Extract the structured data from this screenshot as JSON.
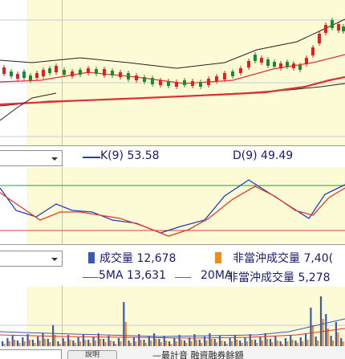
{
  "kd_panel": {
    "k_label": "K(9) 53.58",
    "d_label": "D(9) 49.49",
    "k_color": "#1f3fbf",
    "d_color": "#e23b2a"
  },
  "volume_panel": {
    "volume_label": "成交量 12,678",
    "nonday_label": "非當沖成交量 7,40(",
    "ma5_label": "5MA 13,631",
    "ma20_label": "20MA",
    "overlap_label": "非當沖成交量 5,278",
    "volume_color": "#3a59b5",
    "nonday_color": "#f08a1a"
  },
  "bottom_bar": {
    "button_label": "說明",
    "text": "—最計音 融資融券餘額"
  },
  "colors": {
    "chart_bg": "#fdfbd6",
    "up_candle": "#e0201a",
    "down_candle": "#1e8a2a",
    "ma_short": "#e03030",
    "ma_long": "#222222",
    "bollinger": "#e03030"
  }
}
